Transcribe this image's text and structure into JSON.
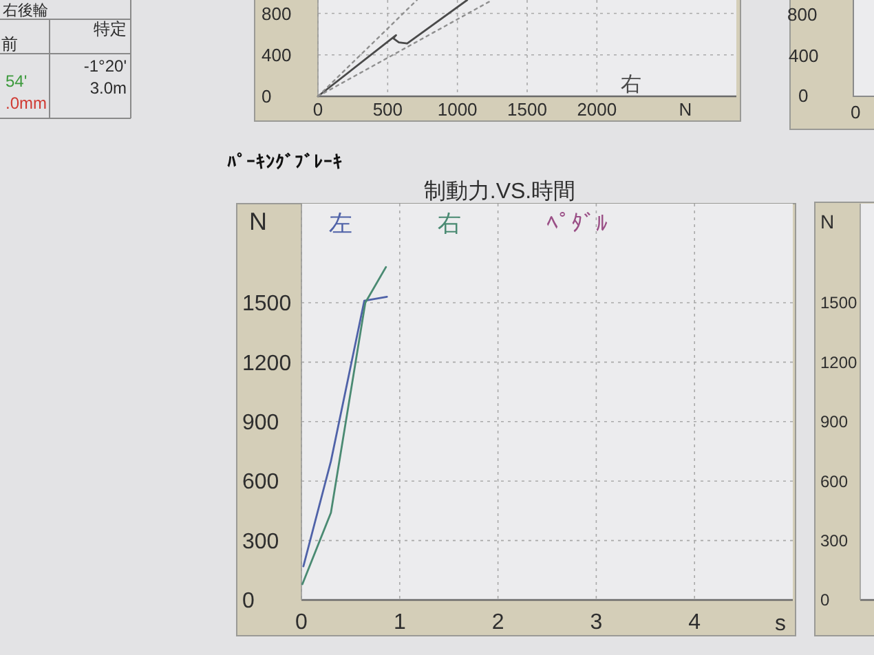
{
  "chart_data": [
    {
      "type": "other",
      "annotations": [
        "右後輪",
        "前",
        "特定",
        "54'",
        "-1°20'",
        "3.0m",
        ".0mm"
      ],
      "colors": [
        "#2a2a2a",
        "#2a2a2a",
        "#2a2a2a",
        "#3d9a3d",
        "#2a2a2a",
        "#2a2a2a",
        "#d03a32"
      ]
    },
    {
      "type": "line",
      "xlabel": "N",
      "xlim": [
        0,
        3000
      ],
      "xticks": [
        0,
        500,
        1000,
        1500,
        2000
      ],
      "ylim": [
        0,
        930
      ],
      "yticks": [
        0,
        400,
        800
      ],
      "grid": true,
      "legend": "bottom right",
      "series": [
        {
          "name": "右",
          "color": "#4a4a4a",
          "x": [
            0,
            560,
            540,
            580,
            640,
            1070
          ],
          "values": [
            0,
            590,
            560,
            520,
            510,
            930
          ]
        },
        {
          "color": "#8f8f8f",
          "line_style": "dotted",
          "x": [
            0,
            710
          ],
          "values": [
            0,
            930
          ]
        },
        {
          "color": "#8f8f8f",
          "line_style": "dotted",
          "x": [
            0,
            1250
          ],
          "values": [
            0,
            930
          ]
        }
      ]
    },
    {
      "type": "other",
      "annotations": [
        "800",
        "400",
        "0",
        "0"
      ]
    },
    {
      "type": "line",
      "title": "ﾊﾟｰｷﾝｸﾞﾌﾞﾚｰｷ",
      "subtitle": "制動力.VS.時間",
      "xlabel": "s",
      "ylabel": "N",
      "xlim": [
        0,
        5
      ],
      "xticks": [
        0,
        1,
        2,
        3,
        4
      ],
      "ylim": [
        0,
        2000
      ],
      "yticks": [
        0,
        300,
        600,
        900,
        1200,
        1500
      ],
      "grid": true,
      "legend": "top",
      "series": [
        {
          "name": "左",
          "color": "#4f62a8",
          "x": [
            0.02,
            0.3,
            0.64,
            0.87
          ],
          "values": [
            170,
            700,
            1510,
            1530
          ]
        },
        {
          "name": "右",
          "color": "#4a8a72",
          "x": [
            0.01,
            0.3,
            0.65,
            0.86
          ],
          "values": [
            80,
            440,
            1500,
            1680
          ]
        },
        {
          "name": "ﾍﾟﾀﾞﾙ",
          "color": "#9a4f86"
        }
      ]
    },
    {
      "type": "line",
      "ylabel": "N",
      "ylim": [
        0,
        2000
      ],
      "yticks": [
        0,
        300,
        600,
        900,
        1200,
        1500
      ],
      "tick_labels": "y",
      "categories": [
        null,
        null
      ],
      "values": [
        null,
        null
      ]
    }
  ]
}
